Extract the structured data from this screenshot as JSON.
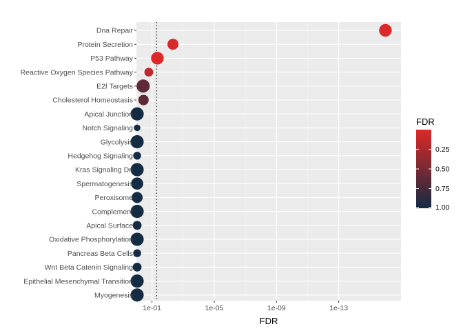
{
  "chart_data": {
    "type": "scatter",
    "xlabel": "FDR",
    "x_scale": "reverse-log10",
    "xlim": [
      1,
      1e-17
    ],
    "x_ticks": [
      {
        "value": 0.1,
        "label": "1e-01"
      },
      {
        "value": 1e-05,
        "label": "1e-05"
      },
      {
        "value": 1e-09,
        "label": "1e-09"
      },
      {
        "value": 1e-13,
        "label": "1e-13"
      }
    ],
    "reference_line": {
      "value": 0.05,
      "style": "dotted"
    },
    "grid": true,
    "legend": {
      "title": "FDR",
      "placement": "right",
      "range": [
        0,
        1
      ],
      "ticks": [
        {
          "value": 0.25,
          "label": "0.25"
        },
        {
          "value": 0.5,
          "label": "0.50"
        },
        {
          "value": 0.75,
          "label": "0.75"
        },
        {
          "value": 1.0,
          "label": "1.00"
        }
      ],
      "low_color": "#dc2828",
      "high_color": "#132b43"
    },
    "points": [
      {
        "category": "Dna Repair",
        "fdr": 1e-16,
        "gene_count": 9,
        "color": "#dc2828"
      },
      {
        "category": "Protein Secretion",
        "fdr": 0.0045,
        "gene_count": 6,
        "color": "#d82829"
      },
      {
        "category": "P53 Pathway",
        "fdr": 0.045,
        "gene_count": 9,
        "color": "#dc2828"
      },
      {
        "category": "Reactive Oxygen Species Pathway",
        "fdr": 0.16,
        "gene_count": 3,
        "color": "#c0262b"
      },
      {
        "category": "E2f Targets",
        "fdr": 0.37,
        "gene_count": 10,
        "color": "#5e2a36"
      },
      {
        "category": "Cholesterol Homeostasis",
        "fdr": 0.35,
        "gene_count": 5,
        "color": "#5e2a36"
      },
      {
        "category": "Apical Junction",
        "fdr": 0.9,
        "gene_count": 10,
        "color": "#132b43"
      },
      {
        "category": "Notch Signaling",
        "fdr": 0.9,
        "gene_count": 1,
        "color": "#132b43"
      },
      {
        "category": "Glycolysis",
        "fdr": 0.9,
        "gene_count": 10,
        "color": "#132b43"
      },
      {
        "category": "Hedgehog Signaling",
        "fdr": 0.9,
        "gene_count": 2,
        "color": "#132b43"
      },
      {
        "category": "Kras Signaling Dn",
        "fdr": 0.9,
        "gene_count": 10,
        "color": "#132b43"
      },
      {
        "category": "Spermatogenesis",
        "fdr": 0.9,
        "gene_count": 8,
        "color": "#132b43"
      },
      {
        "category": "Peroxisome",
        "fdr": 0.9,
        "gene_count": 6,
        "color": "#132b43"
      },
      {
        "category": "Complement",
        "fdr": 0.9,
        "gene_count": 10,
        "color": "#132b43"
      },
      {
        "category": "Apical Surface",
        "fdr": 0.9,
        "gene_count": 3,
        "color": "#132b43"
      },
      {
        "category": "Oxidative Phosphorylation",
        "fdr": 0.9,
        "gene_count": 10,
        "color": "#132b43"
      },
      {
        "category": "Pancreas Beta Cells",
        "fdr": 0.9,
        "gene_count": 2,
        "color": "#132b43"
      },
      {
        "category": "Wnt Beta Catenin Signaling",
        "fdr": 0.9,
        "gene_count": 3,
        "color": "#132b43"
      },
      {
        "category": "Epithelial Mesenchymal Transition",
        "fdr": 0.9,
        "gene_count": 10,
        "color": "#132b43"
      },
      {
        "category": "Myogenesis",
        "fdr": 0.9,
        "gene_count": 10,
        "color": "#132b43"
      }
    ]
  }
}
